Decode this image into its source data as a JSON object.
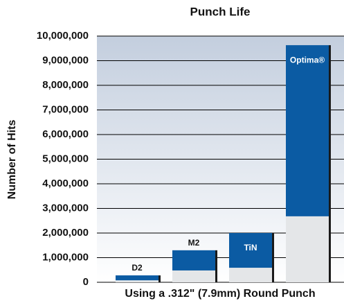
{
  "chart_data": {
    "type": "stacked_bar",
    "title": "Punch Life",
    "ylabel": "Number of Hits",
    "xlabel": "Using a .312\" (7.9mm) Round Punch",
    "categories": [
      "D2",
      "M2",
      "TiN",
      "Optima®"
    ],
    "series": [
      {
        "color": "#e4e6e8",
        "values": [
          80000,
          480000,
          590000,
          2680000
        ]
      },
      {
        "color": "#0b5ba3",
        "values": [
          200000,
          820000,
          1410000,
          6950000
        ]
      }
    ],
    "ylim": [
      0,
      10000000
    ],
    "yticks": [
      0,
      {
        "value": 1000000,
        "label": "1,000,000"
      },
      {
        "value": 2000000,
        "label": "2,000,000"
      },
      {
        "value": 3000000,
        "label": "3,000,000"
      },
      {
        "value": 4000000,
        "label": "4,000,000"
      },
      {
        "value": 5000000,
        "label": "5,000,000"
      },
      {
        "value": 6000000,
        "label": "6,000,000"
      },
      {
        "value": 7000000,
        "label": "7,000,000"
      },
      {
        "value": 8000000,
        "label": "8,000,000"
      },
      {
        "value": 9000000,
        "label": "9,000,000"
      },
      {
        "value": 10000000,
        "label": "10,000,000"
      }
    ],
    "grid": true
  }
}
